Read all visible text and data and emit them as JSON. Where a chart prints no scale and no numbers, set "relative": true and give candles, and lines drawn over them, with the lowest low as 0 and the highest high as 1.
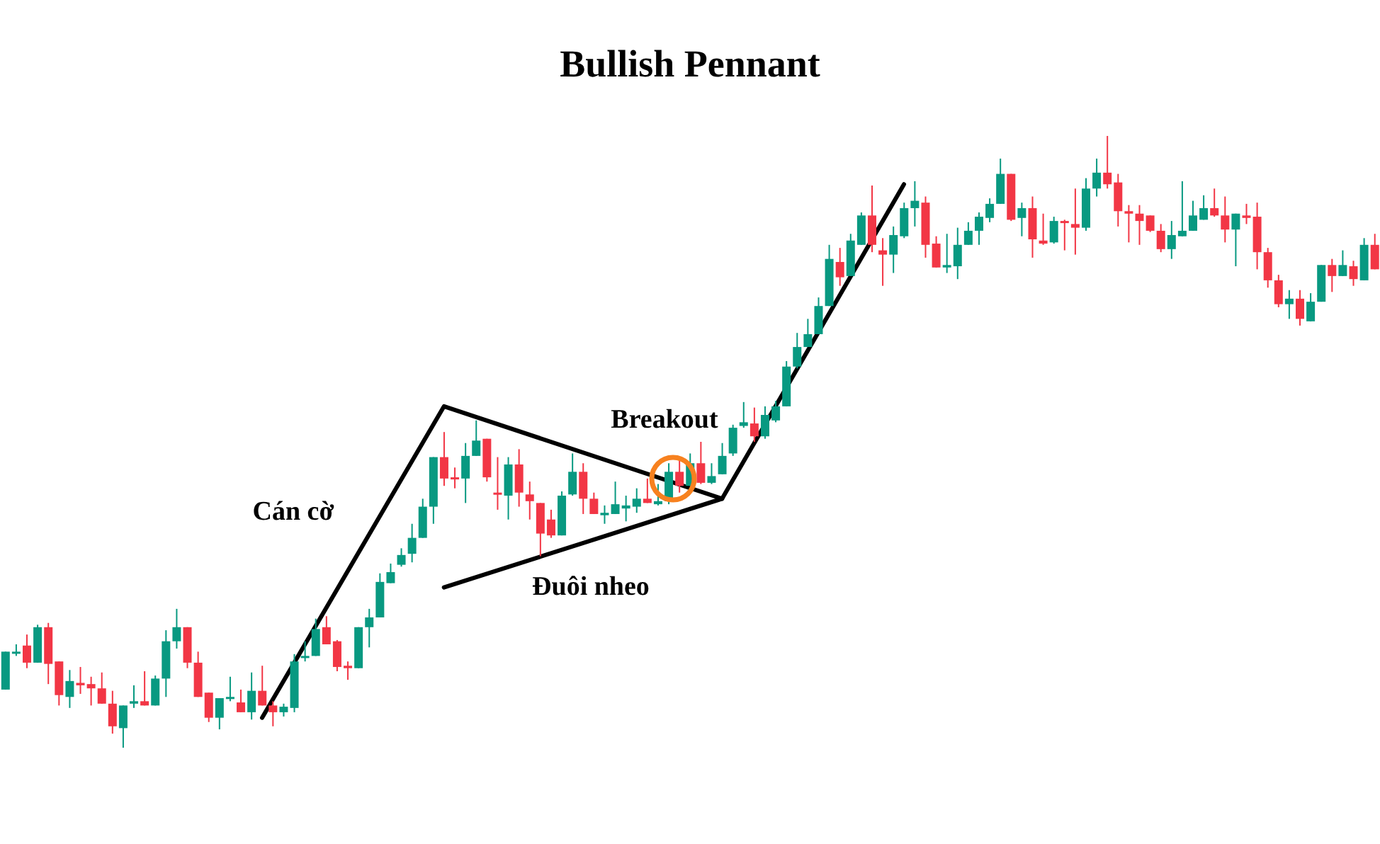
{
  "chart_data": {
    "type": "candlestick",
    "title": "Bullish Pennant",
    "relative": true,
    "colors": [
      "#089981",
      "#089981",
      "#f23645",
      "#089981",
      "#f23645",
      "#f23645",
      "#089981",
      "#f23645",
      "#f23645",
      "#f23645",
      "#f23645",
      "#089981",
      "#089981",
      "#f23645",
      "#089981",
      "#089981",
      "#089981",
      "#f23645",
      "#f23645",
      "#f23645",
      "#089981",
      "#089981",
      "#f23645",
      "#089981",
      "#f23645",
      "#f23645",
      "#089981",
      "#089981",
      "#089981",
      "#089981",
      "#f23645",
      "#f23645",
      "#f23645",
      "#089981",
      "#089981",
      "#089981",
      "#089981",
      "#089981",
      "#089981",
      "#089981",
      "#089981",
      "#f23645",
      "#f23645",
      "#089981",
      "#089981",
      "#f23645",
      "#f23645",
      "#089981",
      "#f23645",
      "#f23645",
      "#f23645",
      "#f23645",
      "#089981",
      "#089981",
      "#f23645",
      "#f23645",
      "#089981",
      "#089981",
      "#089981",
      "#089981",
      "#f23645",
      "#089981",
      "#089981",
      "#f23645",
      "#089981",
      "#f23645",
      "#089981",
      "#089981",
      "#089981",
      "#089981",
      "#f23645",
      "#089981",
      "#089981",
      "#089981",
      "#089981",
      "#089981",
      "#089981",
      "#089981",
      "#f23645",
      "#089981",
      "#089981",
      "#f23645",
      "#f23645",
      "#089981",
      "#089981",
      "#089981",
      "#f23645",
      "#f23645",
      "#089981",
      "#089981",
      "#089981",
      "#089981",
      "#089981",
      "#089981",
      "#f23645",
      "#089981",
      "#f23645",
      "#f23645",
      "#089981",
      "#f23645",
      "#f23645",
      "#089981",
      "#089981",
      "#f23645",
      "#f23645",
      "#f23645",
      "#f23645",
      "#f23645",
      "#f23645",
      "#089981",
      "#089981",
      "#089981",
      "#089981",
      "#f23645",
      "#f23645",
      "#089981",
      "#f23645",
      "#f23645",
      "#f23645",
      "#f23645",
      "#089981",
      "#f23645",
      "#089981",
      "#089981",
      "#f23645",
      "#089981",
      "#f23645",
      "#089981",
      "#f23645"
    ],
    "annotations": [
      "Cán cờ",
      "Breakout",
      "Đuôi nheo"
    ],
    "series": [
      {
        "type": "line",
        "color": "#000000",
        "values": [
          null,
          null,
          null,
          null,
          null,
          null,
          null,
          null,
          null,
          null,
          null,
          null,
          null,
          null,
          null,
          null,
          null,
          null,
          null,
          null,
          null,
          null,
          null,
          null,
          0.049,
          null,
          null,
          null,
          null,
          null,
          null,
          null,
          null,
          null,
          null,
          null,
          null,
          null,
          null,
          null,
          null,
          0.558,
          null,
          null,
          null,
          null,
          null,
          null,
          null,
          null,
          null,
          null,
          null,
          null,
          null,
          null,
          null,
          null,
          null,
          null,
          null,
          null,
          null,
          null,
          null,
          null,
          null,
          0.407,
          null,
          null,
          null,
          null,
          null,
          null,
          null,
          null,
          null,
          null,
          null,
          null,
          null,
          null,
          null,
          null,
          0.921,
          null,
          null,
          null,
          null,
          null,
          null,
          null,
          null,
          null,
          null,
          null,
          null,
          null,
          null,
          null,
          null,
          null,
          null,
          null,
          null,
          null,
          null,
          null,
          null,
          null,
          null,
          null,
          null,
          null,
          null,
          null,
          null,
          null,
          null,
          null,
          null,
          null,
          null,
          null,
          null,
          null,
          null,
          null,
          null
        ]
      },
      {
        "type": "line",
        "color": "#000000",
        "values": [
          null,
          null,
          null,
          null,
          null,
          null,
          null,
          null,
          null,
          null,
          null,
          null,
          null,
          null,
          null,
          null,
          null,
          null,
          null,
          null,
          null,
          null,
          null,
          null,
          null,
          null,
          null,
          null,
          null,
          null,
          null,
          null,
          null,
          null,
          null,
          null,
          null,
          null,
          null,
          null,
          null,
          0.262,
          null,
          null,
          null,
          null,
          null,
          null,
          null,
          null,
          null,
          null,
          null,
          null,
          null,
          null,
          null,
          null,
          null,
          null,
          null,
          null,
          null,
          null,
          null,
          null,
          null,
          0.407,
          null,
          null,
          null,
          null,
          null,
          null,
          null,
          null,
          null,
          null,
          null,
          null,
          null,
          null,
          null,
          null,
          null,
          null,
          null,
          null,
          null,
          null,
          null,
          null,
          null,
          null,
          null,
          null,
          null,
          null,
          null,
          null,
          null,
          null,
          null,
          null,
          null,
          null,
          null,
          null,
          null,
          null,
          null,
          null,
          null,
          null,
          null,
          null,
          null,
          null,
          null,
          null,
          null,
          null,
          null,
          null,
          null,
          null,
          null,
          null,
          null
        ]
      }
    ],
    "categories": [
      null,
      null,
      null,
      null,
      null,
      null,
      null,
      null,
      null,
      null,
      null,
      null,
      null,
      null,
      null,
      null,
      null,
      null,
      null,
      null,
      null,
      null,
      null,
      null,
      null,
      null,
      null,
      null,
      null,
      null,
      null,
      null,
      null,
      null,
      null,
      null,
      null,
      null,
      null,
      null,
      null,
      null,
      null,
      null,
      null,
      null,
      null,
      null,
      null,
      null,
      null,
      null,
      null,
      null,
      null,
      null,
      null,
      null,
      null,
      null,
      null,
      null,
      null,
      null,
      null,
      null,
      null,
      null,
      null,
      null,
      null,
      null,
      null,
      null,
      null,
      null,
      null,
      null,
      null,
      null,
      null,
      null,
      null,
      null,
      null,
      null,
      null,
      null,
      null,
      null,
      null,
      null,
      null,
      null,
      null,
      null,
      null,
      null,
      null,
      null,
      null,
      null,
      null,
      null,
      null,
      null,
      null,
      null,
      null,
      null,
      null,
      null,
      null,
      null,
      null,
      null,
      null,
      null,
      null,
      null,
      null,
      null,
      null,
      null,
      null,
      null,
      null,
      null,
      null
    ],
    "ohlc": [
      [
        0.095,
        0.157,
        0.095,
        0.157
      ],
      [
        0.155,
        0.169,
        0.15,
        0.157
      ],
      [
        0.167,
        0.185,
        0.13,
        0.139
      ],
      [
        0.139,
        0.201,
        0.139,
        0.197
      ],
      [
        0.197,
        0.204,
        0.104,
        0.137
      ],
      [
        0.141,
        0.141,
        0.069,
        0.086
      ],
      [
        0.083,
        0.127,
        0.065,
        0.109
      ],
      [
        0.106,
        0.132,
        0.088,
        0.102
      ],
      [
        0.104,
        0.116,
        0.069,
        0.097
      ],
      [
        0.097,
        0.123,
        0.072,
        0.072
      ],
      [
        0.072,
        0.093,
        0.023,
        0.035
      ],
      [
        0.032,
        0.069,
        0,
        0.069
      ],
      [
        0.072,
        0.102,
        0.065,
        0.076
      ],
      [
        0.076,
        0.125,
        0.069,
        0.069
      ],
      [
        0.069,
        0.118,
        0.069,
        0.113
      ],
      [
        0.113,
        0.192,
        0.083,
        0.174
      ],
      [
        0.174,
        0.227,
        0.162,
        0.197
      ],
      [
        0.197,
        0.197,
        0.13,
        0.139
      ],
      [
        0.139,
        0.157,
        0.083,
        0.083
      ],
      [
        0.09,
        0.09,
        0.042,
        0.049
      ],
      [
        0.049,
        0.081,
        0.03,
        0.081
      ],
      [
        0.081,
        0.116,
        0.076,
        0.083
      ],
      [
        0.074,
        0.095,
        0.058,
        0.058
      ],
      [
        0.058,
        0.123,
        0.046,
        0.093
      ],
      [
        0.093,
        0.134,
        0.069,
        0.069
      ],
      [
        0.069,
        0.076,
        0.035,
        0.058
      ],
      [
        0.058,
        0.072,
        0.051,
        0.067
      ],
      [
        0.065,
        0.153,
        0.058,
        0.141
      ],
      [
        0.148,
        0.174,
        0.141,
        0.15
      ],
      [
        0.15,
        0.211,
        0.15,
        0.194
      ],
      [
        0.197,
        0.215,
        0.169,
        0.169
      ],
      [
        0.174,
        0.176,
        0.125,
        0.132
      ],
      [
        0.134,
        0.141,
        0.111,
        0.13
      ],
      [
        0.13,
        0.197,
        0.13,
        0.197
      ],
      [
        0.197,
        0.227,
        0.164,
        0.213
      ],
      [
        0.213,
        0.285,
        0.213,
        0.271
      ],
      [
        0.269,
        0.301,
        0.269,
        0.287
      ],
      [
        0.299,
        0.326,
        0.296,
        0.315
      ],
      [
        0.317,
        0.366,
        0.303,
        0.343
      ],
      [
        0.343,
        0.407,
        0.343,
        0.394
      ],
      [
        0.394,
        0.475,
        0.366,
        0.475
      ],
      [
        0.475,
        0.516,
        0.428,
        0.44
      ],
      [
        0.442,
        0.458,
        0.424,
        0.44
      ],
      [
        0.44,
        0.498,
        0.4,
        0.477
      ],
      [
        0.477,
        0.535,
        0.477,
        0.502
      ],
      [
        0.505,
        0.505,
        0.435,
        0.442
      ],
      [
        0.417,
        0.475,
        0.389,
        0.414
      ],
      [
        0.412,
        0.475,
        0.373,
        0.463
      ],
      [
        0.463,
        0.488,
        0.394,
        0.417
      ],
      [
        0.414,
        0.435,
        0.373,
        0.403
      ],
      [
        0.4,
        0.4,
        0.313,
        0.35
      ],
      [
        0.373,
        0.389,
        0.343,
        0.347
      ],
      [
        0.347,
        0.419,
        0.347,
        0.412
      ],
      [
        0.414,
        0.481,
        0.412,
        0.451
      ],
      [
        0.451,
        0.465,
        0.382,
        0.407
      ],
      [
        0.407,
        0.417,
        0.382,
        0.382
      ],
      [
        0.38,
        0.396,
        0.366,
        0.384
      ],
      [
        0.382,
        0.435,
        0.382,
        0.398
      ],
      [
        0.391,
        0.412,
        0.37,
        0.396
      ],
      [
        0.394,
        0.424,
        0.384,
        0.407
      ],
      [
        0.407,
        0.44,
        0.4,
        0.4
      ],
      [
        0.398,
        0.431,
        0.396,
        0.403
      ],
      [
        0.403,
        0.465,
        0.398,
        0.451
      ],
      [
        0.451,
        0.475,
        0.417,
        0.428
      ],
      [
        0.428,
        0.481,
        0.428,
        0.465
      ],
      [
        0.465,
        0.5,
        0.431,
        0.433
      ],
      [
        0.433,
        0.465,
        0.431,
        0.444
      ],
      [
        0.447,
        0.498,
        0.447,
        0.477
      ],
      [
        0.481,
        0.528,
        0.477,
        0.523
      ],
      [
        0.526,
        0.565,
        0.523,
        0.532
      ],
      [
        0.53,
        0.556,
        0.5,
        0.509
      ],
      [
        0.509,
        0.558,
        0.505,
        0.544
      ],
      [
        0.535,
        0.567,
        0.532,
        0.558
      ],
      [
        0.558,
        0.632,
        0.558,
        0.623
      ],
      [
        0.623,
        0.678,
        0.62,
        0.655
      ],
      [
        0.655,
        0.701,
        0.655,
        0.676
      ],
      [
        0.676,
        0.736,
        0.676,
        0.722
      ],
      [
        0.722,
        0.822,
        0.722,
        0.799
      ],
      [
        0.794,
        0.817,
        0.755,
        0.769
      ],
      [
        0.771,
        0.84,
        0.771,
        0.829
      ],
      [
        0.822,
        0.875,
        0.822,
        0.87
      ],
      [
        0.87,
        0.919,
        0.81,
        0.822
      ],
      [
        0.813,
        0.833,
        0.755,
        0.806
      ],
      [
        0.806,
        0.852,
        0.776,
        0.838
      ],
      [
        0.836,
        0.891,
        0.833,
        0.882
      ],
      [
        0.882,
        0.926,
        0.852,
        0.894
      ],
      [
        0.891,
        0.901,
        0.801,
        0.822
      ],
      [
        0.824,
        0.836,
        0.785,
        0.785
      ],
      [
        0.785,
        0.84,
        0.776,
        0.789
      ],
      [
        0.787,
        0.85,
        0.766,
        0.822
      ],
      [
        0.822,
        0.859,
        0.822,
        0.845
      ],
      [
        0.845,
        0.875,
        0.822,
        0.868
      ],
      [
        0.866,
        0.898,
        0.859,
        0.889
      ],
      [
        0.889,
        0.963,
        0.889,
        0.938
      ],
      [
        0.938,
        0.938,
        0.861,
        0.863
      ],
      [
        0.866,
        0.891,
        0.836,
        0.882
      ],
      [
        0.882,
        0.901,
        0.801,
        0.831
      ],
      [
        0.829,
        0.873,
        0.822,
        0.824
      ],
      [
        0.826,
        0.868,
        0.824,
        0.861
      ],
      [
        0.861,
        0.863,
        0.813,
        0.859
      ],
      [
        0.856,
        0.914,
        0.806,
        0.85
      ],
      [
        0.85,
        0.931,
        0.845,
        0.914
      ],
      [
        0.914,
        0.963,
        0.901,
        0.94
      ],
      [
        0.94,
        1,
        0.914,
        0.921
      ],
      [
        0.924,
        0.938,
        0.852,
        0.877
      ],
      [
        0.877,
        0.887,
        0.826,
        0.873
      ],
      [
        0.873,
        0.887,
        0.822,
        0.861
      ],
      [
        0.87,
        0.87,
        0.843,
        0.845
      ],
      [
        0.845,
        0.856,
        0.81,
        0.815
      ],
      [
        0.815,
        0.861,
        0.799,
        0.838
      ],
      [
        0.836,
        0.926,
        0.836,
        0.845
      ],
      [
        0.845,
        0.894,
        0.845,
        0.87
      ],
      [
        0.863,
        0.903,
        0.863,
        0.882
      ],
      [
        0.882,
        0.914,
        0.868,
        0.87
      ],
      [
        0.87,
        0.901,
        0.826,
        0.847
      ],
      [
        0.847,
        0.873,
        0.787,
        0.873
      ],
      [
        0.87,
        0.889,
        0.856,
        0.866
      ],
      [
        0.868,
        0.891,
        0.782,
        0.81
      ],
      [
        0.81,
        0.817,
        0.752,
        0.764
      ],
      [
        0.764,
        0.773,
        0.72,
        0.725
      ],
      [
        0.725,
        0.748,
        0.701,
        0.734
      ],
      [
        0.734,
        0.748,
        0.69,
        0.701
      ],
      [
        0.697,
        0.743,
        0.697,
        0.729
      ],
      [
        0.729,
        0.789,
        0.729,
        0.789
      ],
      [
        0.789,
        0.799,
        0.745,
        0.771
      ],
      [
        0.771,
        0.813,
        0.771,
        0.789
      ],
      [
        0.787,
        0.796,
        0.755,
        0.766
      ],
      [
        0.764,
        0.833,
        0.764,
        0.822
      ],
      [
        0.822,
        0.84,
        0.782,
        0.782
      ]
    ]
  }
}
